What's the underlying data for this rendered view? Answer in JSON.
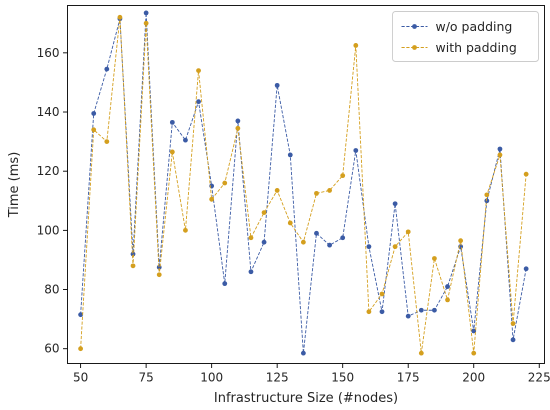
{
  "chart_data": {
    "type": "line",
    "title": "",
    "xlabel": "Infrastructure Size (#nodes)",
    "ylabel": "Time (ms)",
    "xlim": [
      45,
      227
    ],
    "ylim": [
      55,
      176
    ],
    "xticks": [
      50,
      75,
      100,
      125,
      150,
      175,
      200,
      225
    ],
    "yticks": [
      60,
      80,
      100,
      120,
      140,
      160
    ],
    "grid": false,
    "legend_position": "top-right",
    "x": [
      50,
      55,
      60,
      65,
      70,
      75,
      80,
      85,
      90,
      95,
      100,
      105,
      110,
      115,
      120,
      125,
      130,
      135,
      140,
      145,
      150,
      155,
      160,
      165,
      170,
      175,
      180,
      185,
      190,
      195,
      200,
      205,
      210,
      215,
      220
    ],
    "series": [
      {
        "name": "w/o padding",
        "color": "#3b5ba5",
        "values": [
          71.5,
          139.5,
          154.5,
          171.5,
          92.0,
          173.5,
          87.5,
          136.5,
          130.5,
          143.5,
          115.0,
          82.0,
          137.0,
          86.0,
          96.0,
          149.0,
          125.5,
          58.5,
          99.0,
          95.0,
          97.5,
          127.0,
          94.5,
          72.5,
          109.0,
          71.0,
          73.0,
          73.0,
          81.0,
          94.5,
          66.0,
          110.0,
          127.5,
          63.0,
          87.0
        ]
      },
      {
        "name": "with padding",
        "color": "#d49f1e",
        "values": [
          60.0,
          134.0,
          130.0,
          172.0,
          88.0,
          170.0,
          85.0,
          126.5,
          100.0,
          154.0,
          110.5,
          116.0,
          134.5,
          97.5,
          106.0,
          113.5,
          102.5,
          96.0,
          112.5,
          113.5,
          118.5,
          162.5,
          72.5,
          78.5,
          94.5,
          99.5,
          58.5,
          90.5,
          76.5,
          96.5,
          58.5,
          112.0,
          125.5,
          68.5,
          119.0
        ]
      }
    ]
  }
}
